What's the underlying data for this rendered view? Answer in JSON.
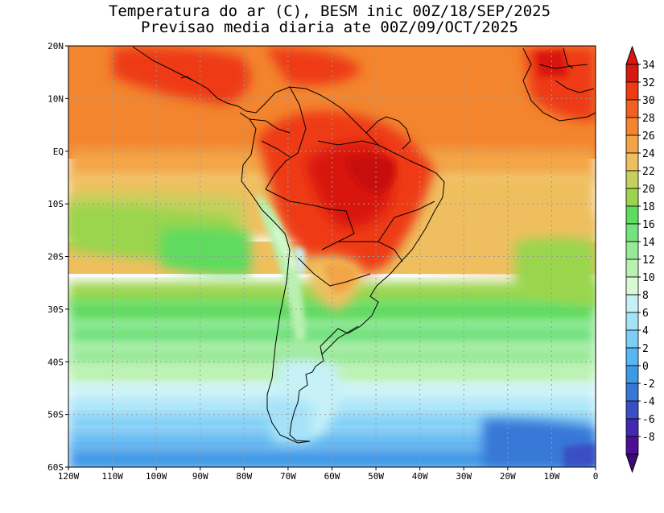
{
  "title_line1": "Temperatura do ar (C), BESM inic 00Z/18/SEP/2025",
  "title_line2": "Previsao media diaria ate 00Z/09/OCT/2025",
  "map": {
    "lat_labels": [
      "20N",
      "10N",
      "EQ",
      "10S",
      "20S",
      "30S",
      "40S",
      "50S",
      "60S"
    ],
    "lon_labels": [
      "120W",
      "110W",
      "100W",
      "90W",
      "80W",
      "70W",
      "60W",
      "50W",
      "40W",
      "30W",
      "20W",
      "10W",
      "0"
    ]
  },
  "colorbar": {
    "labels": [
      "34",
      "32",
      "30",
      "28",
      "26",
      "24",
      "22",
      "20",
      "18",
      "16",
      "14",
      "12",
      "10",
      "8",
      "6",
      "4",
      "2",
      "0",
      "-2",
      "-4",
      "-6",
      "-8"
    ],
    "colors": [
      "#d8190f",
      "#ee3b16",
      "#f25f22",
      "#f3852e",
      "#f3a446",
      "#efbf5e",
      "#c7d05c",
      "#9ad54d",
      "#5fdb5e",
      "#74e27e",
      "#98e996",
      "#b9f1b1",
      "#d8f9d2",
      "#c6f1f7",
      "#a5e2f8",
      "#7dcdf6",
      "#58b6f1",
      "#3f9ae6",
      "#3777d6",
      "#3a4fc4",
      "#4328b0",
      "#4e0f96"
    ]
  },
  "colors": {
    "ocean_north": "#f3852e",
    "continent_hot": "#ee3b16",
    "coastline": "#000000"
  }
}
